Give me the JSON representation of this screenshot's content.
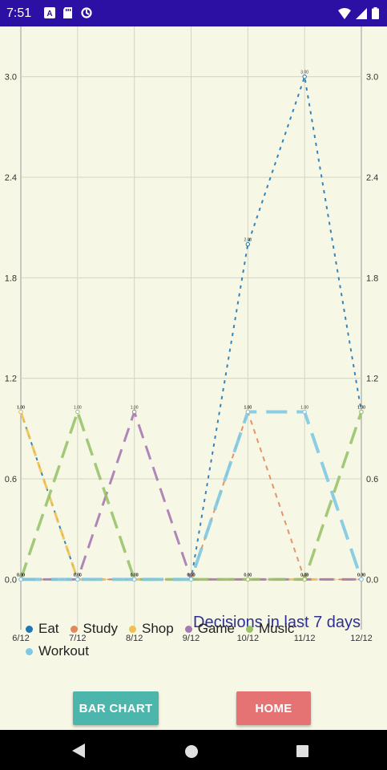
{
  "status_bar": {
    "time": "7:51",
    "left_icons": [
      "app-a-icon",
      "sd-card-icon",
      "sync-icon"
    ],
    "right_icons": [
      "wifi-icon",
      "cell-signal-icon",
      "battery-icon"
    ],
    "background": "#2c0fa3"
  },
  "chart_data": {
    "type": "line",
    "title": "Decisions in last 7 days",
    "categories": [
      "6/12",
      "7/12",
      "8/12",
      "9/12",
      "10/12",
      "11/12",
      "12/12"
    ],
    "ylim": [
      -0.3,
      3.3
    ],
    "yticks": [
      "0.0",
      "0.6",
      "1.2",
      "1.8",
      "2.4",
      "3.0"
    ],
    "grid": true,
    "legend_position": "bottom-left",
    "series": [
      {
        "name": "Eat",
        "color": "#1f77b4",
        "values": [
          1,
          0,
          0,
          0,
          2,
          3,
          1
        ],
        "labels": [
          "1.00",
          "0.00",
          "0.00",
          "0.00",
          "2.00",
          "3.00",
          "1.00"
        ]
      },
      {
        "name": "Study",
        "color": "#e08a5c",
        "values": [
          0,
          0,
          0,
          0,
          1,
          0,
          0
        ],
        "labels": [
          "0.00",
          "0.00",
          "0.00",
          "0.00",
          "1.00",
          "0.00",
          "0.00"
        ]
      },
      {
        "name": "Shop",
        "color": "#f0c050",
        "values": [
          1,
          0,
          0,
          0,
          0,
          0,
          0
        ],
        "labels": [
          "1.00",
          "0.00",
          "0.00",
          "0.00",
          "0.00",
          "0.00",
          "0.00"
        ]
      },
      {
        "name": "Game",
        "color": "#a779b3",
        "values": [
          0,
          0,
          1,
          0,
          0,
          0,
          0
        ],
        "labels": [
          "0.00",
          "0.00",
          "1.00",
          "0.00",
          "0.00",
          "0.00",
          "0.00"
        ]
      },
      {
        "name": "Music",
        "color": "#98c36a",
        "values": [
          0,
          1,
          0,
          0,
          0,
          0,
          1
        ],
        "labels": [
          "0.00",
          "1.00",
          "0.00",
          "0.00",
          "0.00",
          "0.00",
          "1.00"
        ]
      },
      {
        "name": "Workout",
        "color": "#7ec9e3",
        "values": [
          0,
          0,
          0,
          0,
          1,
          1,
          0
        ],
        "labels": [
          "0.00",
          "0.00",
          "0.00",
          "0.00",
          "1.00",
          "1.00",
          "0.00"
        ]
      }
    ]
  },
  "legend": {
    "row1": [
      "Eat",
      "Study",
      "Shop",
      "Game",
      "Music"
    ],
    "row2": [
      "Workout"
    ]
  },
  "buttons": {
    "bar_chart": "BAR CHART",
    "home": "HOME"
  },
  "colors": {
    "background": "#f7f7e6",
    "title": "#2e3192",
    "bar_chart_button": "#4db6ac",
    "home_button": "#e57373"
  }
}
